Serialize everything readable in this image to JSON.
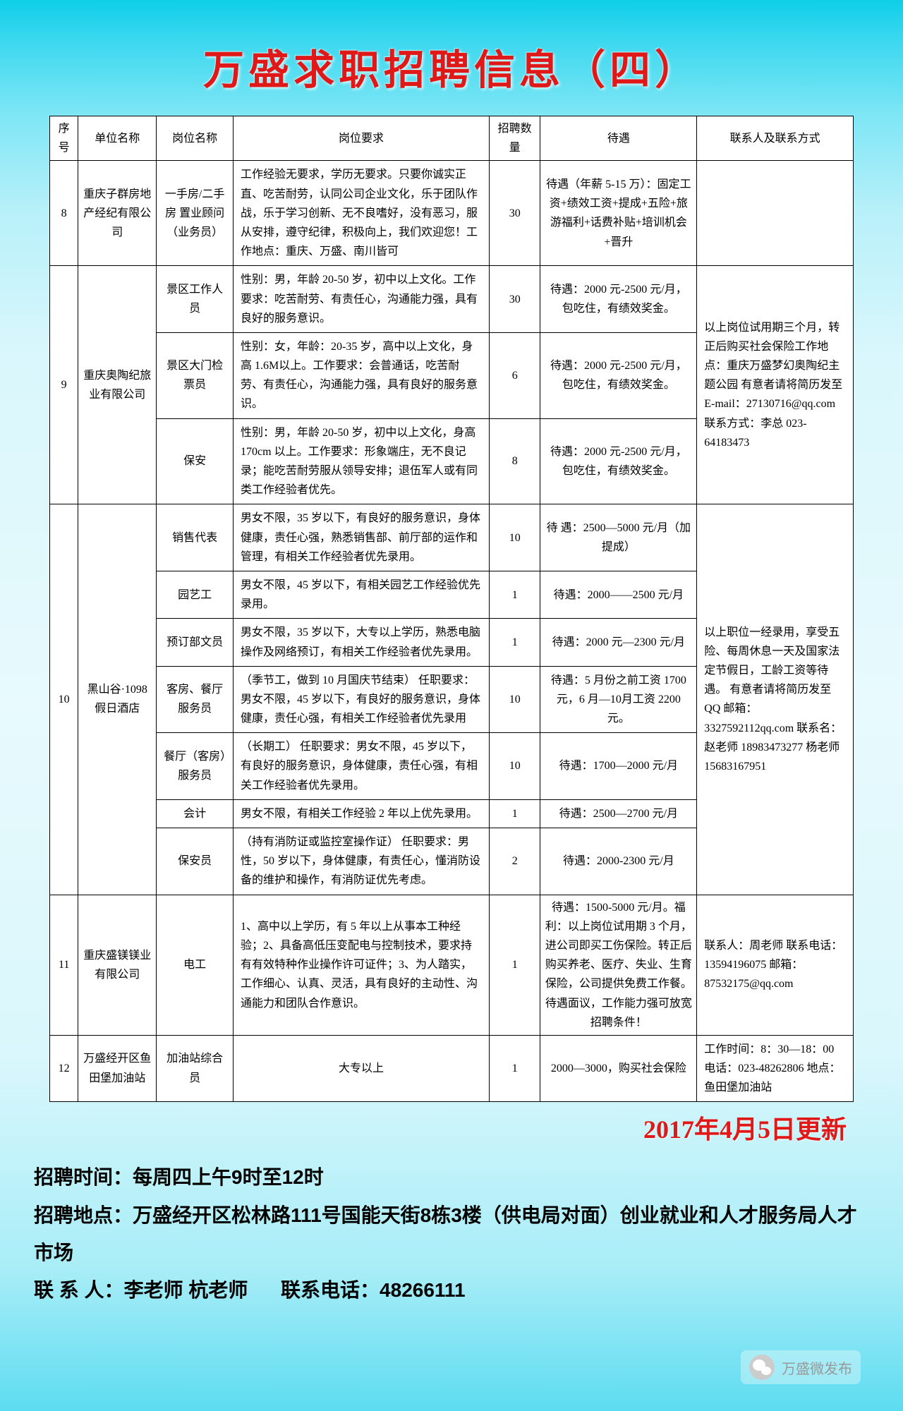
{
  "title": "万盛求职招聘信息（四）",
  "headers": [
    "序号",
    "单位名称",
    "岗位名称",
    "岗位要求",
    "招聘数量",
    "待遇",
    "联系人及联系方式"
  ],
  "update_date": "2017年4月5日更新",
  "rows": {
    "r8": {
      "seq": "8",
      "unit": "重庆子群房地产经纪有限公司",
      "post": "一手房/二手房 置业顾问（业务员）",
      "req": "工作经验无要求，学历无要求。只要你诚实正直、吃苦耐劳，认同公司企业文化，乐于团队作战，乐于学习创新、无不良嗜好，没有恶习，服从安排，遵守纪律，积极向上，我们欢迎您！工作地点：重庆、万盛、南川皆可",
      "cnt": "30",
      "pay": "待遇（年薪 5-15 万）：固定工资+绩效工资+提成+五险+旅游福利+话费补贴+培训机会+晋升",
      "contact": ""
    },
    "r9_unit": "重庆奥陶纪旅业有限公司",
    "r9_seq": "9",
    "r9_contact": "以上岗位试用期三个月，转正后购买社会保险工作地点：重庆万盛梦幻奥陶纪主题公园  有意者请将简历发至E-mail：27130716@qq.com\n联系方式：李总\n023-64183473",
    "r9a": {
      "post": "景区工作人员",
      "req": "性别：男，年龄 20-50 岁，初中以上文化。工作要求：吃苦耐劳、有责任心，沟通能力强，具有良好的服务意识。",
      "cnt": "30",
      "pay": "待遇：2000 元-2500 元/月，包吃住，有绩效奖金。"
    },
    "r9b": {
      "post": "景区大门检票员",
      "req": "性别：女，年龄：20-35 岁，高中以上文化，身高 1.6M以上。工作要求：会普通话，吃苦耐劳、有责任心，沟通能力强，具有良好的服务意识。",
      "cnt": "6",
      "pay": "待遇：2000 元-2500 元/月，包吃住，有绩效奖金。"
    },
    "r9c": {
      "post": "保安",
      "req": "性别：男，年龄 20-50 岁，初中以上文化，身高 170cm 以上。工作要求：形象端庄，无不良记录；能吃苦耐劳服从领导安排；退伍军人或有同类工作经验者优先。",
      "cnt": "8",
      "pay": "待遇：2000 元-2500 元/月，包吃住，有绩效奖金。"
    },
    "r10_unit": "黑山谷·1098 假日酒店",
    "r10_seq": "10",
    "r10_contact": "以上职位一经录用，享受五险、每周休息一天及国家法定节假日，工龄工资等待遇。\n有意者请将简历发至\nQQ 邮箱：\n3327592112qq.com\n联系名：赵老师\n18983473277\n杨老师\n15683167951",
    "r10a": {
      "post": "销售代表",
      "req": "男女不限，35 岁以下，有良好的服务意识，身体健康，责任心强，熟悉销售部、前厅部的运作和管理，有相关工作经验者优先录用。",
      "cnt": "10",
      "pay": "待 遇：2500—5000 元/月（加提成）"
    },
    "r10b": {
      "post": "园艺工",
      "req": "男女不限，45 岁以下，有相关园艺工作经验优先录用。",
      "cnt": "1",
      "pay": "待遇：2000——2500 元/月"
    },
    "r10c": {
      "post": "预订部文员",
      "req": "男女不限，35 岁以下，大专以上学历，熟悉电脑操作及网络预订，有相关工作经验者优先录用。",
      "cnt": "1",
      "pay": "待遇：2000 元—2300 元/月"
    },
    "r10d": {
      "post": "客房、餐厅服务员",
      "req": "（季节工，做到 10 月国庆节结束）\n任职要求：男女不限，45 岁以下，有良好的服务意识，身体健康，责任心强，有相关工作经验者优先录用",
      "cnt": "10",
      "pay": "待遇：5 月份之前工资 1700 元，6 月—10月工资 2200 元。"
    },
    "r10e": {
      "post": "餐厅（客房）服务员",
      "req": "（长期工）\n任职要求：男女不限，45 岁以下，有良好的服务意识，身体健康，责任心强，有相关工作经验者优先录用。",
      "cnt": "10",
      "pay": "待遇：1700—2000 元/月"
    },
    "r10f": {
      "post": "会计",
      "req": "男女不限，有相关工作经验 2 年以上优先录用。",
      "cnt": "1",
      "pay": "待遇：2500—2700 元/月"
    },
    "r10g": {
      "post": "保安员",
      "req": "（持有消防证或监控室操作证）\n任职要求：男性，50 岁以下，身体健康，有责任心，懂消防设备的维护和操作，有消防证优先考虑。",
      "cnt": "2",
      "pay": "待遇：2000-2300 元/月"
    },
    "r11": {
      "seq": "11",
      "unit": "重庆盛镁镁业有限公司",
      "post": "电工",
      "req": "1、高中以上学历，有 5 年以上从事本工种经验；2、具备高低压变配电与控制技术，要求持有有效特种作业操作许可证件；3、为人踏实，工作细心、认真、灵活，具有良好的主动性、沟通能力和团队合作意识。",
      "cnt": "1",
      "pay": "待遇：1500-5000 元/月。福利：以上岗位试用期 3 个月，进公司即买工伤保险。转正后购买养老、医疗、失业、生育保险，公司提供免费工作餐。待遇面议，工作能力强可放宽招聘条件！",
      "contact": "联系人：周老师\n联系电话：\n13594196075\n邮箱：\n87532175@qq.com"
    },
    "r12": {
      "seq": "12",
      "unit": "万盛经开区鱼田堡加油站",
      "post": "加油站综合员",
      "req": "大专以上",
      "cnt": "1",
      "pay": "2000—3000，购买社会保险",
      "contact": "工作时间：8：30—18：00  电话：023-48262806\n地点：鱼田堡加油站"
    }
  },
  "footer": {
    "time_label": "招聘时间：",
    "time": "每周四上午9时至12时",
    "addr_label": "招聘地点：",
    "addr": "万盛经开区松林路111号国能天街8栋3楼（供电局对面）创业就业和人才服务局人才市场",
    "person_label": "联 系 人：",
    "person": "李老师  杭老师",
    "tel_label": "联系电话：",
    "tel": "48266111"
  },
  "wechat_tag": "万盛微发布"
}
